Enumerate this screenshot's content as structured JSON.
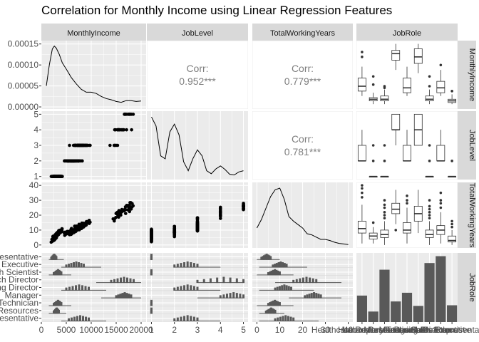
{
  "chart_data": {
    "type": "scatter-matrix",
    "title": "Correlation for Monthly Income using Linear Regression Features",
    "variables": [
      "MonthlyIncome",
      "JobLevel",
      "TotalWorkingYears",
      "JobRole"
    ],
    "correlations": [
      {
        "row": "JobLevel",
        "col": "MonthlyIncome",
        "label": "Corr:",
        "value": "0.952***"
      },
      {
        "row": "TotalWorkingYears",
        "col": "MonthlyIncome",
        "label": "Corr:",
        "value": "0.779***"
      },
      {
        "row": "TotalWorkingYears",
        "col": "JobLevel",
        "label": "Corr:",
        "value": "0.781***"
      }
    ],
    "axes": {
      "MonthlyIncome": {
        "range": [
          0,
          21000
        ],
        "ticks": [
          0,
          5000,
          10000,
          15000,
          20000
        ],
        "tick_labels": [
          "0",
          "5000",
          "10000",
          "15000",
          "20000"
        ]
      },
      "JobLevel": {
        "range": [
          0.8,
          5.2
        ],
        "ticks": [
          1,
          2,
          3,
          4,
          5
        ],
        "tick_labels": [
          "1",
          "2",
          "3",
          "4",
          "5"
        ]
      },
      "TotalWorkingYears": {
        "range": [
          -2,
          42
        ],
        "ticks": [
          0,
          10,
          20,
          30,
          40
        ],
        "tick_labels": [
          "0",
          "10",
          "20",
          "30",
          "40"
        ]
      },
      "density_MonthlyIncome": {
        "range": [
          -5e-06,
          0.000158
        ],
        "ticks": [
          0.0,
          5e-05,
          0.0001,
          0.00015
        ],
        "tick_labels": [
          "0.00000",
          "0.00005",
          "0.00010",
          "0.00015"
        ]
      },
      "JobRole": {
        "categories": [
          "Healthcare Representative",
          "Human Resources",
          "Laboratory Technician",
          "Manager",
          "Manufacturing Director",
          "Research Director",
          "Research Scientist",
          "Sales Executive",
          "Sales Representative"
        ],
        "tick_labels": [
          "Healthcare Representative",
          "Human Resources",
          "Laboratory Technician",
          "Manager",
          "Manufacturing Director",
          "Research Director",
          "Research Scientist",
          "Sales Executive",
          "Sales Representative"
        ]
      }
    },
    "jobrole_counts": [
      131,
      52,
      259,
      102,
      145,
      80,
      292,
      326,
      83
    ],
    "jobrole_count_range": [
      0,
      342
    ],
    "density": {
      "MonthlyIncome": {
        "x": [
          1000,
          1600,
          2200,
          2600,
          3000,
          3600,
          4200,
          5000,
          6000,
          7000,
          8000,
          9000,
          10000,
          11000,
          12000,
          13000,
          14000,
          15000,
          16000,
          17000,
          18000,
          19000,
          20000
        ],
        "y": [
          5e-05,
          0.0001,
          0.000138,
          0.000145,
          0.00014,
          0.000125,
          0.000105,
          9e-05,
          7e-05,
          5.5e-05,
          4.2e-05,
          3.5e-05,
          3.5e-05,
          3.2e-05,
          2.5e-05,
          2e-05,
          1.7e-05,
          1.3e-05,
          1.1e-05,
          1.5e-05,
          1.5e-05,
          1.3e-05,
          1.4e-05
        ]
      },
      "JobLevel": {
        "x": [
          1,
          1.2,
          1.4,
          1.6,
          1.8,
          2,
          2.2,
          2.4,
          2.6,
          2.8,
          3,
          3.2,
          3.4,
          3.6,
          3.8,
          4,
          4.2,
          4.4,
          4.6,
          4.8,
          5
        ],
        "y": [
          1.0,
          0.85,
          0.35,
          0.3,
          0.75,
          0.88,
          0.7,
          0.25,
          0.1,
          0.3,
          0.45,
          0.35,
          0.1,
          0.05,
          0.13,
          0.18,
          0.12,
          0.04,
          0.03,
          0.08,
          0.1
        ],
        "scale": [
          0,
          1.05
        ]
      },
      "TotalWorkingYears": {
        "x": [
          0,
          2,
          4,
          6,
          8,
          10,
          12,
          14,
          16,
          18,
          20,
          22,
          24,
          26,
          28,
          30,
          32,
          34,
          36,
          38,
          40
        ],
        "y": [
          0.3,
          0.45,
          0.65,
          0.85,
          0.97,
          1.0,
          0.8,
          0.5,
          0.42,
          0.36,
          0.3,
          0.2,
          0.18,
          0.14,
          0.1,
          0.1,
          0.08,
          0.05,
          0.03,
          0.02,
          0.01
        ],
        "scale": [
          0,
          1.05
        ]
      }
    },
    "boxplots": {
      "MonthlyIncome": [
        {
          "role": "Healthcare Representative",
          "min": 4000,
          "q1": 5500,
          "median": 7000,
          "q3": 9500,
          "max": 13000,
          "outliers": [
            16000,
            17500
          ]
        },
        {
          "role": "Human Resources",
          "min": 1500,
          "q1": 2500,
          "median": 3000,
          "q3": 3500,
          "max": 5000,
          "outliers": [
            7500,
            10000
          ]
        },
        {
          "role": "Laboratory Technician",
          "min": 1500,
          "q1": 2500,
          "median": 3000,
          "q3": 4000,
          "max": 6000,
          "outliers": [
            6500,
            7000
          ]
        },
        {
          "role": "Manager",
          "min": 12000,
          "q1": 15000,
          "median": 17000,
          "q3": 18000,
          "max": 20000,
          "outliers": []
        },
        {
          "role": "Manufacturing Director",
          "min": 4000,
          "q1": 5000,
          "median": 6500,
          "q3": 9500,
          "max": 13000,
          "outliers": []
        },
        {
          "role": "Research Director",
          "min": 11000,
          "q1": 14000,
          "median": 16000,
          "q3": 18500,
          "max": 20000,
          "outliers": []
        },
        {
          "role": "Research Scientist",
          "min": 1500,
          "q1": 2500,
          "median": 3000,
          "q3": 4000,
          "max": 6000,
          "outliers": [
            7000,
            10000
          ]
        },
        {
          "role": "Sales Executive",
          "min": 4000,
          "q1": 5000,
          "median": 6500,
          "q3": 8500,
          "max": 12000,
          "outliers": [
            13500
          ]
        },
        {
          "role": "Sales Representative",
          "min": 1500,
          "q1": 2000,
          "median": 2500,
          "q3": 3000,
          "max": 4500,
          "outliers": [
            5500
          ]
        }
      ],
      "JobLevel": [
        {
          "role": "Healthcare Representative",
          "min": 2,
          "q1": 2,
          "median": 2,
          "q3": 3,
          "max": 4,
          "outliers": []
        },
        {
          "role": "Human Resources",
          "min": 1,
          "q1": 1,
          "median": 1,
          "q3": 1,
          "max": 1,
          "outliers": [
            2,
            3
          ]
        },
        {
          "role": "Laboratory Technician",
          "min": 1,
          "q1": 1,
          "median": 1,
          "q3": 1,
          "max": 1,
          "outliers": [
            2,
            3
          ]
        },
        {
          "role": "Manager",
          "min": 3,
          "q1": 4,
          "median": 4,
          "q3": 5,
          "max": 5,
          "outliers": []
        },
        {
          "role": "Manufacturing Director",
          "min": 2,
          "q1": 2,
          "median": 2,
          "q3": 3,
          "max": 4,
          "outliers": []
        },
        {
          "role": "Research Director",
          "min": 3,
          "q1": 3,
          "median": 4,
          "q3": 5,
          "max": 5,
          "outliers": []
        },
        {
          "role": "Research Scientist",
          "min": 1,
          "q1": 1,
          "median": 1,
          "q3": 1,
          "max": 1,
          "outliers": [
            2,
            3
          ]
        },
        {
          "role": "Sales Executive",
          "min": 2,
          "q1": 2,
          "median": 2,
          "q3": 3,
          "max": 4,
          "outliers": []
        },
        {
          "role": "Sales Representative",
          "min": 1,
          "q1": 1,
          "median": 1,
          "q3": 1,
          "max": 1,
          "outliers": [
            2
          ]
        }
      ],
      "TotalWorkingYears": [
        {
          "role": "Healthcare Representative",
          "min": 1,
          "q1": 8,
          "median": 11,
          "q3": 16,
          "max": 27,
          "outliers": [
            32,
            35,
            38,
            40
          ]
        },
        {
          "role": "Human Resources",
          "min": 1,
          "q1": 4,
          "median": 6,
          "q3": 8,
          "max": 12,
          "outliers": [
            15
          ]
        },
        {
          "role": "Laboratory Technician",
          "min": 0,
          "q1": 5,
          "median": 7,
          "q3": 10,
          "max": 16,
          "outliers": [
            18,
            20,
            22,
            25,
            27,
            30
          ]
        },
        {
          "role": "Manager",
          "min": 14,
          "q1": 21,
          "median": 24,
          "q3": 28,
          "max": 37,
          "outliers": [
            10
          ]
        },
        {
          "role": "Manufacturing Director",
          "min": 1,
          "q1": 8,
          "median": 10,
          "q3": 15,
          "max": 25,
          "outliers": [
            28,
            30,
            33
          ]
        },
        {
          "role": "Research Director",
          "min": 8,
          "q1": 16,
          "median": 21,
          "q3": 26,
          "max": 37,
          "outliers": []
        },
        {
          "role": "Research Scientist",
          "min": 0,
          "q1": 5,
          "median": 7,
          "q3": 10,
          "max": 16,
          "outliers": [
            18,
            20,
            22,
            24,
            26,
            30
          ]
        },
        {
          "role": "Sales Executive",
          "min": 1,
          "q1": 7,
          "median": 10,
          "q3": 13,
          "max": 22,
          "outliers": [
            25,
            28,
            30,
            35
          ]
        },
        {
          "role": "Sales Representative",
          "min": 0,
          "q1": 2,
          "median": 3,
          "q3": 6,
          "max": 10,
          "outliers": [
            12,
            14,
            16
          ]
        }
      ]
    }
  }
}
